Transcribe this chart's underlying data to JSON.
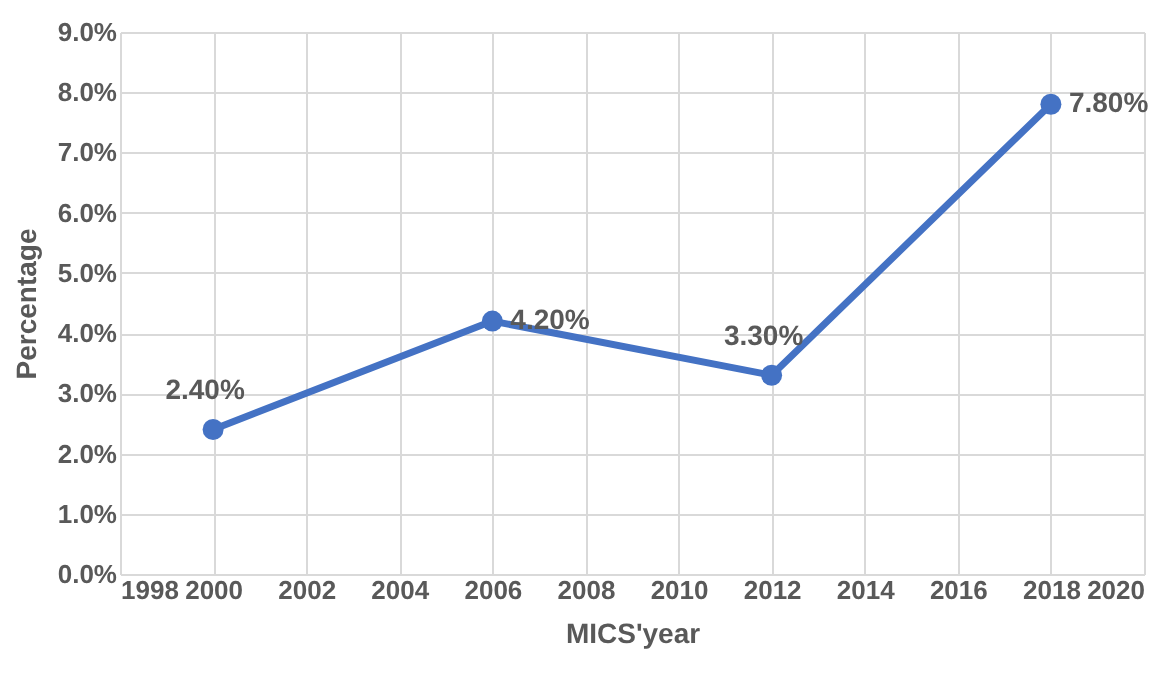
{
  "chart_data": {
    "type": "line",
    "xlabel": "MICS'year",
    "ylabel": "Percentage",
    "x": [
      2000,
      2006,
      2012,
      2018
    ],
    "series": [
      {
        "color": "#4472c4",
        "values": [
          2.4,
          4.2,
          3.3,
          7.8
        ],
        "value_labels": [
          "2.40%",
          "4.20%",
          "3.30%",
          "7.80%"
        ]
      }
    ],
    "xlim": [
      1998,
      2020
    ],
    "xticks": [
      1998,
      2000,
      2002,
      2004,
      2006,
      2008,
      2010,
      2012,
      2014,
      2016,
      2018,
      2020
    ],
    "ylim": [
      0,
      9
    ],
    "yticks": [
      {
        "value": 0,
        "label": "0.0%"
      },
      {
        "value": 1,
        "label": "1.0%"
      },
      {
        "value": 2,
        "label": "2.0%"
      },
      {
        "value": 3,
        "label": "3.0%"
      },
      {
        "value": 4,
        "label": "4.0%"
      },
      {
        "value": 5,
        "label": "5.0%"
      },
      {
        "value": 6,
        "label": "6.0%"
      },
      {
        "value": 7,
        "label": "7.0%"
      },
      {
        "value": 8,
        "label": "8.0%"
      },
      {
        "value": 9,
        "label": "9.0%"
      }
    ],
    "grid": true,
    "marker": "circle",
    "line_style": "solid"
  }
}
